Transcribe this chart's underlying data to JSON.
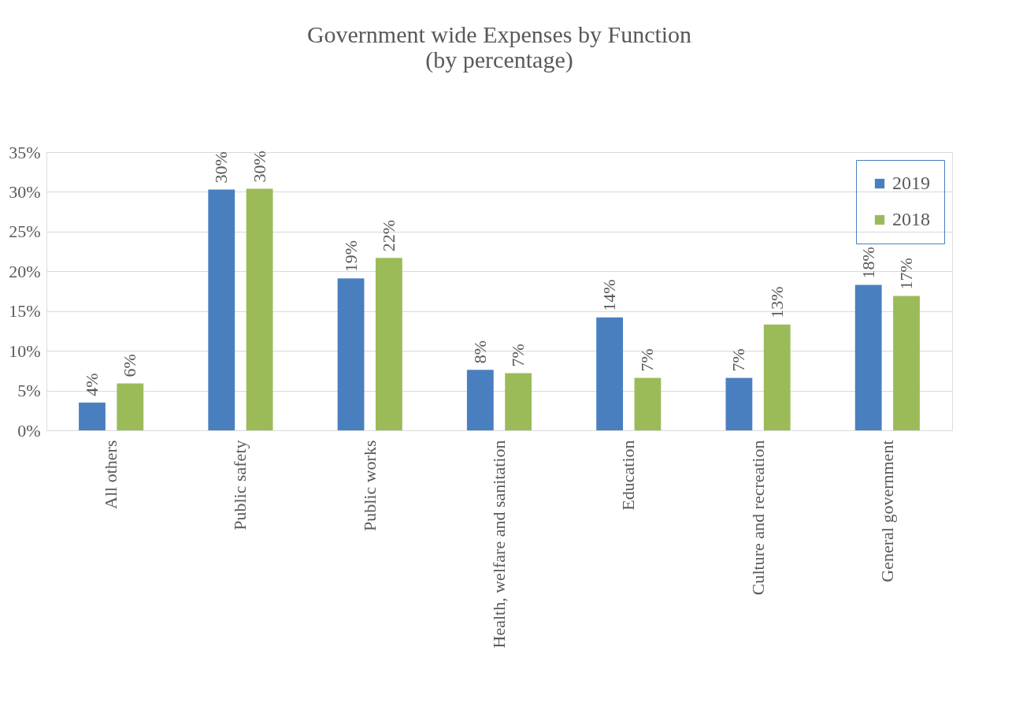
{
  "chart_data": {
    "type": "bar",
    "title": [
      "Government wide Expenses by Function",
      "(by percentage)"
    ],
    "categories": [
      "All others",
      "Public safety",
      "Public works",
      "Health, welfare and sanitation",
      "Education",
      "Culture and recreation",
      "General government"
    ],
    "series": [
      {
        "name": "2019",
        "color": "#4a7fbf",
        "values": [
          3.5,
          30.3,
          19.1,
          7.6,
          14.2,
          6.6,
          18.3
        ],
        "value_labels": [
          "4%",
          "30%",
          "19%",
          "8%",
          "14%",
          "7%",
          "18%"
        ]
      },
      {
        "name": "2018",
        "color": "#9bbb59",
        "values": [
          5.9,
          30.4,
          21.7,
          7.2,
          6.6,
          13.3,
          16.9
        ],
        "value_labels": [
          "6%",
          "30%",
          "22%",
          "7%",
          "7%",
          "13%",
          "17%"
        ]
      }
    ],
    "ylim": [
      0,
      35
    ],
    "yticks": [
      {
        "value": 0,
        "label": "0%"
      },
      {
        "value": 5,
        "label": "5%"
      },
      {
        "value": 10,
        "label": "10%"
      },
      {
        "value": 15,
        "label": "15%"
      },
      {
        "value": 20,
        "label": "20%"
      },
      {
        "value": 25,
        "label": "25%"
      },
      {
        "value": 30,
        "label": "30%"
      },
      {
        "value": 35,
        "label": "35%"
      }
    ],
    "grid": "y",
    "legend": "top right"
  }
}
